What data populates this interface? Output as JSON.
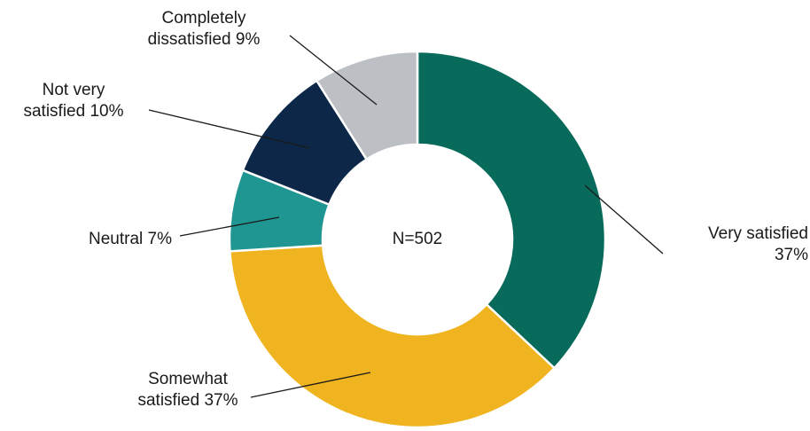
{
  "chart_data": {
    "type": "pie",
    "variant": "donut",
    "center_label": "N=502",
    "legend": "none",
    "slices": [
      {
        "label": "Very satisfied",
        "value": 37,
        "display": [
          "Very satisfied",
          "37%"
        ],
        "color": "#076a5a"
      },
      {
        "label": "Somewhat satisfied",
        "value": 37,
        "display": [
          "Somewhat",
          "satisfied 37%"
        ],
        "color": "#efb41f"
      },
      {
        "label": "Neutral",
        "value": 7,
        "display": [
          "Neutral  7%"
        ],
        "color": "#1f9691"
      },
      {
        "label": "Not very satisfied",
        "value": 10,
        "display": [
          "Not very",
          "satisfied  10%"
        ],
        "color": "#0d2748"
      },
      {
        "label": "Completely dissatisfied",
        "value": 9,
        "display": [
          "Completely",
          "dissatisfied  9%"
        ],
        "color": "#bcc0c4"
      }
    ]
  }
}
